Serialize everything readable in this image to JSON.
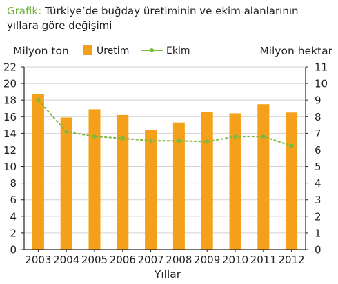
{
  "figure_label": "Grafik:",
  "title": "Türkiye’de buğday üretiminin ve ekim alanlarının yıllara göre değişimi",
  "chart_data": {
    "type": "bar",
    "title": "Türkiye’de buğday üretiminin ve ekim alanlarının yıllara göre değişimi",
    "xlabel": "Yıllar",
    "ylabel_left": "Milyon ton",
    "ylabel_right": "Milyon hektar",
    "categories": [
      "2003",
      "2004",
      "2005",
      "2006",
      "2007",
      "2008",
      "2009",
      "2010",
      "2011",
      "2012"
    ],
    "y_left_ticks": [
      "0",
      "2",
      "4",
      "6",
      "8",
      "10",
      "12",
      "14",
      "16",
      "18",
      "20",
      "22"
    ],
    "y_right_ticks": [
      "0",
      "1",
      "2",
      "3",
      "4",
      "5",
      "6",
      "7",
      "8",
      "9",
      "10",
      "11"
    ],
    "ylim_left": [
      0,
      22
    ],
    "ylim_right": [
      0,
      11
    ],
    "legend_position": "top",
    "series": [
      {
        "name": "Üretim",
        "type": "bar",
        "axis": "left",
        "color": "#f5a01a",
        "values": [
          18.7,
          15.9,
          16.9,
          16.2,
          14.4,
          15.3,
          16.6,
          16.4,
          17.5,
          16.5
        ]
      },
      {
        "name": "Ekim",
        "type": "line",
        "axis": "right",
        "color": "#7cba3d",
        "values": [
          9.0,
          7.1,
          6.8,
          6.7,
          6.55,
          6.55,
          6.5,
          6.8,
          6.8,
          6.25
        ]
      }
    ]
  }
}
